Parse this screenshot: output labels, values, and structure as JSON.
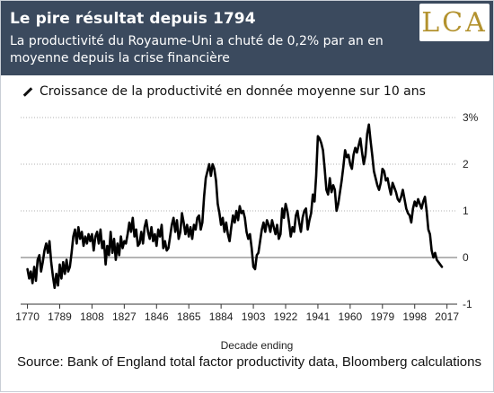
{
  "header": {
    "title": "Le pire résultat depuis 1794",
    "subtitle": "La productivité du Royaume-Uni a chuté de 0,2% par an en moyenne depuis la crise financière",
    "logo_text": "LCA"
  },
  "source": "Source: Bank of England total factor productivity data, Bloomberg calculations",
  "chart_data": {
    "type": "line",
    "title": "Croissance de la productivité en donnée moyenne sur 10 ans",
    "xlabel": "Decade ending",
    "ylabel": "",
    "xlim": [
      1766,
      2023
    ],
    "ylim": [
      -1,
      3
    ],
    "x_ticks": [
      1770,
      1789,
      1808,
      1827,
      1846,
      1865,
      1884,
      1903,
      1922,
      1941,
      1960,
      1979,
      1998,
      2017
    ],
    "y_ticks": [
      {
        "value": 3,
        "label": "3%"
      },
      {
        "value": 2,
        "label": "2"
      },
      {
        "value": 1,
        "label": "1"
      },
      {
        "value": 0,
        "label": "0"
      },
      {
        "value": -1,
        "label": "-1"
      }
    ],
    "grid": "horizontal-dotted",
    "series": [
      {
        "name": "",
        "color": "#000000",
        "points": [
          [
            1770,
            -0.25
          ],
          [
            1771,
            -0.45
          ],
          [
            1772,
            -0.3
          ],
          [
            1773,
            -0.55
          ],
          [
            1774,
            -0.2
          ],
          [
            1775,
            -0.5
          ],
          [
            1776,
            -0.05
          ],
          [
            1777,
            0.05
          ],
          [
            1778,
            -0.3
          ],
          [
            1779,
            -0.1
          ],
          [
            1780,
            0.15
          ],
          [
            1781,
            0.3
          ],
          [
            1782,
            0.1
          ],
          [
            1783,
            0.35
          ],
          [
            1784,
            -0.1
          ],
          [
            1785,
            -0.4
          ],
          [
            1786,
            -0.65
          ],
          [
            1787,
            -0.35
          ],
          [
            1788,
            -0.6
          ],
          [
            1789,
            -0.15
          ],
          [
            1790,
            -0.45
          ],
          [
            1791,
            -0.1
          ],
          [
            1792,
            -0.35
          ],
          [
            1793,
            -0.05
          ],
          [
            1794,
            -0.3
          ],
          [
            1795,
            -0.2
          ],
          [
            1796,
            0.1
          ],
          [
            1797,
            0.45
          ],
          [
            1798,
            0.6
          ],
          [
            1799,
            0.3
          ],
          [
            1800,
            0.65
          ],
          [
            1801,
            0.4
          ],
          [
            1802,
            0.55
          ],
          [
            1803,
            0.25
          ],
          [
            1804,
            0.45
          ],
          [
            1805,
            0.3
          ],
          [
            1806,
            0.5
          ],
          [
            1807,
            0.35
          ],
          [
            1808,
            0.5
          ],
          [
            1809,
            0.15
          ],
          [
            1810,
            0.45
          ],
          [
            1811,
            0.55
          ],
          [
            1812,
            0.3
          ],
          [
            1813,
            0.6
          ],
          [
            1814,
            0.2
          ],
          [
            1815,
            0.35
          ],
          [
            1816,
            -0.15
          ],
          [
            1817,
            0.25
          ],
          [
            1818,
            0.05
          ],
          [
            1819,
            0.55
          ],
          [
            1820,
            0.1
          ],
          [
            1821,
            0.4
          ],
          [
            1822,
            -0.05
          ],
          [
            1823,
            0.3
          ],
          [
            1824,
            0.05
          ],
          [
            1825,
            0.45
          ],
          [
            1826,
            0.2
          ],
          [
            1827,
            0.35
          ],
          [
            1828,
            0.3
          ],
          [
            1829,
            0.5
          ],
          [
            1830,
            0.75
          ],
          [
            1831,
            0.55
          ],
          [
            1832,
            0.85
          ],
          [
            1833,
            0.45
          ],
          [
            1834,
            0.6
          ],
          [
            1835,
            0.25
          ],
          [
            1836,
            0.3
          ],
          [
            1837,
            0.55
          ],
          [
            1838,
            0.3
          ],
          [
            1839,
            0.65
          ],
          [
            1840,
            0.8
          ],
          [
            1841,
            0.55
          ],
          [
            1842,
            0.4
          ],
          [
            1843,
            0.65
          ],
          [
            1844,
            0.35
          ],
          [
            1845,
            0.5
          ],
          [
            1846,
            0.25
          ],
          [
            1847,
            0.6
          ],
          [
            1848,
            0.45
          ],
          [
            1849,
            0.7
          ],
          [
            1850,
            0.2
          ],
          [
            1851,
            0.35
          ],
          [
            1852,
            0.15
          ],
          [
            1853,
            0.2
          ],
          [
            1854,
            0.45
          ],
          [
            1855,
            0.7
          ],
          [
            1856,
            0.85
          ],
          [
            1857,
            0.55
          ],
          [
            1858,
            0.8
          ],
          [
            1859,
            0.4
          ],
          [
            1860,
            0.55
          ],
          [
            1861,
            0.95
          ],
          [
            1862,
            0.75
          ],
          [
            1863,
            0.5
          ],
          [
            1864,
            0.7
          ],
          [
            1865,
            0.45
          ],
          [
            1866,
            0.65
          ],
          [
            1867,
            0.4
          ],
          [
            1868,
            0.7
          ],
          [
            1869,
            0.6
          ],
          [
            1870,
            0.85
          ],
          [
            1871,
            0.9
          ],
          [
            1872,
            0.6
          ],
          [
            1873,
            0.75
          ],
          [
            1874,
            1.3
          ],
          [
            1875,
            1.7
          ],
          [
            1876,
            1.85
          ],
          [
            1877,
            2.0
          ],
          [
            1878,
            1.75
          ],
          [
            1879,
            2.0
          ],
          [
            1880,
            1.9
          ],
          [
            1881,
            1.65
          ],
          [
            1882,
            1.15
          ],
          [
            1883,
            0.95
          ],
          [
            1884,
            0.7
          ],
          [
            1885,
            0.85
          ],
          [
            1886,
            0.55
          ],
          [
            1887,
            0.75
          ],
          [
            1888,
            0.5
          ],
          [
            1889,
            0.35
          ],
          [
            1890,
            0.65
          ],
          [
            1891,
            0.9
          ],
          [
            1892,
            0.75
          ],
          [
            1893,
            1.0
          ],
          [
            1894,
            0.8
          ],
          [
            1895,
            1.1
          ],
          [
            1896,
            0.95
          ],
          [
            1897,
            1.0
          ],
          [
            1898,
            0.85
          ],
          [
            1899,
            0.55
          ],
          [
            1900,
            0.4
          ],
          [
            1901,
            0.5
          ],
          [
            1902,
            0.2
          ],
          [
            1903,
            -0.2
          ],
          [
            1904,
            -0.25
          ],
          [
            1905,
            0.05
          ],
          [
            1906,
            0.1
          ],
          [
            1907,
            0.35
          ],
          [
            1908,
            0.6
          ],
          [
            1909,
            0.75
          ],
          [
            1910,
            0.55
          ],
          [
            1911,
            0.8
          ],
          [
            1912,
            0.7
          ],
          [
            1913,
            0.55
          ],
          [
            1914,
            0.8
          ],
          [
            1915,
            0.65
          ],
          [
            1916,
            0.5
          ],
          [
            1917,
            0.7
          ],
          [
            1918,
            0.4
          ],
          [
            1919,
            0.5
          ],
          [
            1920,
            1.05
          ],
          [
            1921,
            0.85
          ],
          [
            1922,
            1.15
          ],
          [
            1923,
            1.0
          ],
          [
            1924,
            0.75
          ],
          [
            1925,
            0.45
          ],
          [
            1926,
            0.65
          ],
          [
            1927,
            0.55
          ],
          [
            1928,
            0.9
          ],
          [
            1929,
            1.0
          ],
          [
            1930,
            0.75
          ],
          [
            1931,
            0.55
          ],
          [
            1932,
            0.85
          ],
          [
            1933,
            1.0
          ],
          [
            1934,
            1.05
          ],
          [
            1935,
            0.6
          ],
          [
            1936,
            0.8
          ],
          [
            1937,
            0.95
          ],
          [
            1938,
            1.35
          ],
          [
            1939,
            1.2
          ],
          [
            1940,
            1.75
          ],
          [
            1941,
            2.6
          ],
          [
            1942,
            2.55
          ],
          [
            1943,
            2.45
          ],
          [
            1944,
            2.3
          ],
          [
            1945,
            1.9
          ],
          [
            1946,
            1.45
          ],
          [
            1947,
            1.35
          ],
          [
            1948,
            1.7
          ],
          [
            1949,
            1.4
          ],
          [
            1950,
            1.55
          ],
          [
            1951,
            1.45
          ],
          [
            1952,
            1.0
          ],
          [
            1953,
            1.15
          ],
          [
            1954,
            1.4
          ],
          [
            1955,
            1.65
          ],
          [
            1956,
            1.95
          ],
          [
            1957,
            2.3
          ],
          [
            1958,
            2.15
          ],
          [
            1959,
            2.2
          ],
          [
            1960,
            2.0
          ],
          [
            1961,
            1.9
          ],
          [
            1962,
            2.2
          ],
          [
            1963,
            2.35
          ],
          [
            1964,
            2.25
          ],
          [
            1965,
            2.4
          ],
          [
            1966,
            2.55
          ],
          [
            1967,
            2.25
          ],
          [
            1968,
            2.0
          ],
          [
            1969,
            2.2
          ],
          [
            1970,
            2.65
          ],
          [
            1971,
            2.85
          ],
          [
            1972,
            2.5
          ],
          [
            1973,
            2.2
          ],
          [
            1974,
            1.85
          ],
          [
            1975,
            1.7
          ],
          [
            1976,
            1.55
          ],
          [
            1977,
            1.45
          ],
          [
            1978,
            1.6
          ],
          [
            1979,
            1.9
          ],
          [
            1980,
            1.85
          ],
          [
            1981,
            1.65
          ],
          [
            1982,
            1.7
          ],
          [
            1983,
            1.5
          ],
          [
            1984,
            1.35
          ],
          [
            1985,
            1.6
          ],
          [
            1986,
            1.5
          ],
          [
            1987,
            1.4
          ],
          [
            1988,
            1.25
          ],
          [
            1989,
            1.2
          ],
          [
            1990,
            1.3
          ],
          [
            1991,
            1.45
          ],
          [
            1992,
            1.25
          ],
          [
            1993,
            1.05
          ],
          [
            1994,
            0.95
          ],
          [
            1995,
            0.9
          ],
          [
            1996,
            0.75
          ],
          [
            1997,
            1.05
          ],
          [
            1998,
            1.2
          ],
          [
            1999,
            1.1
          ],
          [
            2000,
            1.25
          ],
          [
            2001,
            1.15
          ],
          [
            2002,
            1.05
          ],
          [
            2003,
            1.2
          ],
          [
            2004,
            1.3
          ],
          [
            2005,
            1.0
          ],
          [
            2006,
            0.6
          ],
          [
            2007,
            0.5
          ],
          [
            2008,
            0.15
          ],
          [
            2009,
            0.0
          ],
          [
            2010,
            0.1
          ],
          [
            2011,
            -0.05
          ],
          [
            2012,
            -0.1
          ],
          [
            2013,
            -0.15
          ],
          [
            2014,
            -0.2
          ]
        ]
      }
    ]
  }
}
